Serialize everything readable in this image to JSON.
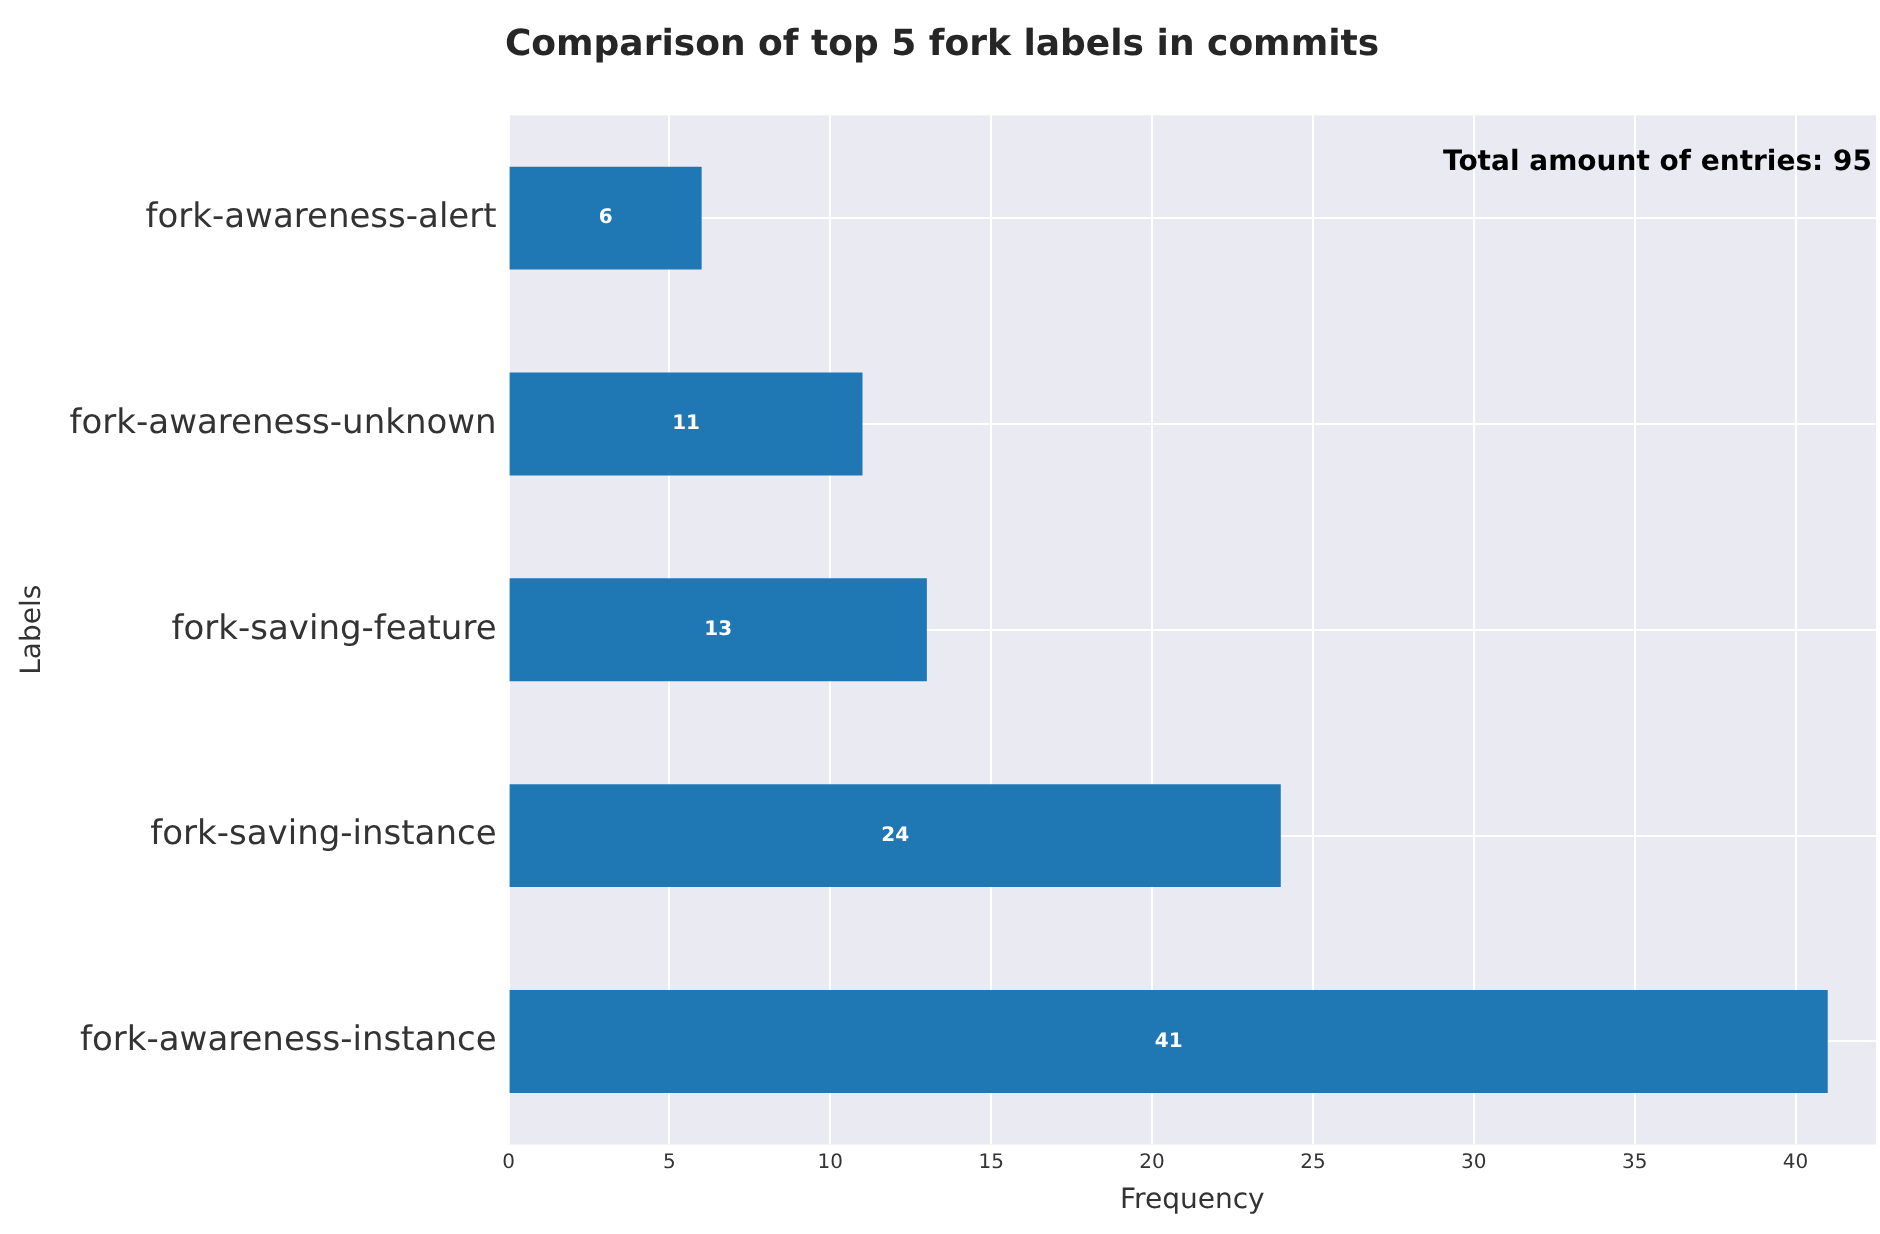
{
  "chart_data": {
    "type": "bar",
    "orientation": "horizontal",
    "title": "Comparison of top 5 fork labels in commits",
    "xlabel": "Frequency",
    "ylabel": "Labels",
    "categories": [
      "fork-awareness-alert",
      "fork-awareness-unknown",
      "fork-saving-feature",
      "fork-saving-instance",
      "fork-awareness-instance"
    ],
    "values": [
      6,
      11,
      13,
      24,
      41
    ],
    "color": "#1f77b4",
    "xlim": [
      0,
      42.5
    ],
    "xticks": [
      0,
      5,
      10,
      15,
      20,
      25,
      30,
      35,
      40
    ],
    "grid": true,
    "data_labels": true,
    "annotations": [
      "Total amount of entries: 95"
    ]
  }
}
